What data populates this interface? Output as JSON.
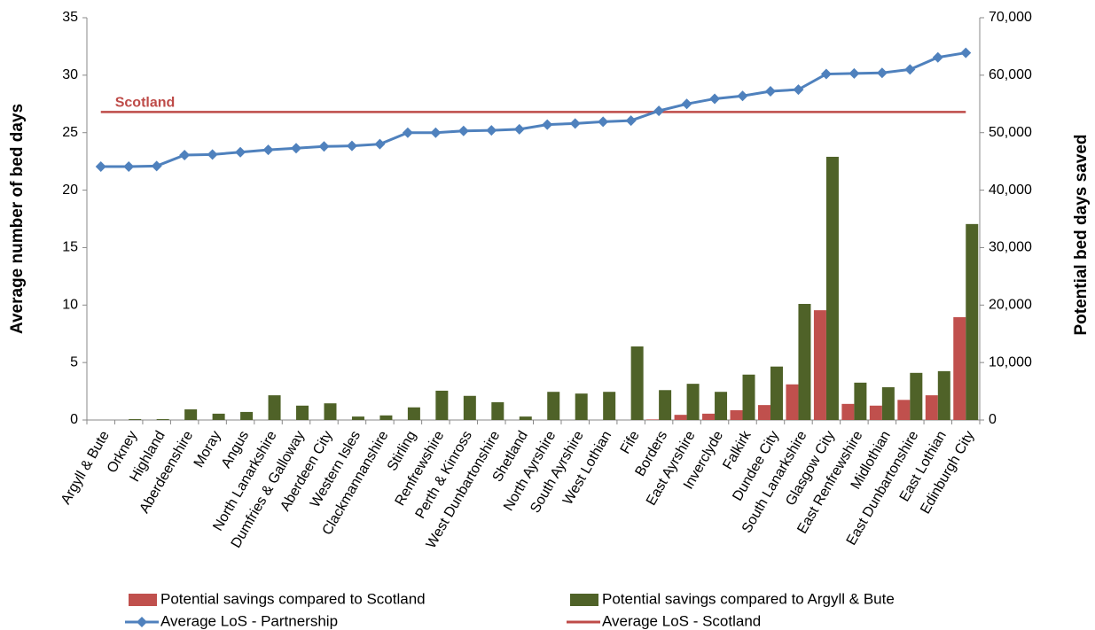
{
  "chart_data": {
    "type": "bar-line",
    "categories": [
      "Argyll & Bute",
      "Orkney",
      "Highland",
      "Aberdeenshire",
      "Moray",
      "Angus",
      "North Lanarkshire",
      "Dumfries & Galloway",
      "Aberdeen City",
      "Western Isles",
      "Clackmannanshire",
      "Stirling",
      "Renfrewshire",
      "Perth & Kinross",
      "West Dunbartonshire",
      "Shetland",
      "North Ayrshire",
      "South Ayrshire",
      "West Lothian",
      "Fife",
      "Borders",
      "East Ayrshire",
      "Inverclyde",
      "Falkirk",
      "Dundee City",
      "South Lanarkshire",
      "Glasgow City",
      "East Renfrewshire",
      "Midlothian",
      "East Dunbartonshire",
      "East Lothian",
      "Edinburgh City"
    ],
    "y_label": "Average number of bed days",
    "y2_label": "Potential bed days saved",
    "ylim": [
      0,
      35
    ],
    "yticks": [
      0,
      5,
      10,
      15,
      20,
      25,
      30,
      35
    ],
    "y2lim": [
      0,
      70000
    ],
    "y2ticks": [
      0,
      {
        "value": 10000,
        "label": "10,000"
      },
      {
        "value": 20000,
        "label": "20,000"
      },
      {
        "value": 30000,
        "label": "30,000"
      },
      {
        "value": 40000,
        "label": "40,000"
      },
      {
        "value": 50000,
        "label": "50,000"
      },
      {
        "value": 60000,
        "label": "60,000"
      },
      {
        "value": 70000,
        "label": "70,000"
      }
    ],
    "series": [
      {
        "name": "Potential savings compared to Scotland",
        "type": "bar",
        "axis": "y2",
        "color": "#c0504d",
        "values": [
          0,
          0,
          0,
          0,
          0,
          0,
          0,
          0,
          0,
          0,
          0,
          0,
          0,
          0,
          0,
          0,
          0,
          0,
          0,
          0,
          100,
          900,
          1100,
          1700,
          2600,
          6200,
          19100,
          2800,
          2500,
          3500,
          4300,
          17900
        ]
      },
      {
        "name": "Potential savings compared to Argyll & Bute",
        "type": "bar",
        "axis": "y2",
        "color": "#4f6228",
        "values": [
          0,
          150,
          150,
          1850,
          1100,
          1400,
          4300,
          2500,
          2900,
          600,
          800,
          2200,
          5100,
          4200,
          3100,
          600,
          4900,
          4600,
          4900,
          12800,
          5200,
          6300,
          4900,
          7900,
          9300,
          20200,
          45800,
          6500,
          5700,
          8200,
          8500,
          34100
        ]
      },
      {
        "name": "Average LoS - Partnership",
        "type": "line",
        "color": "#4f81bd",
        "values": [
          22.05,
          22.05,
          22.1,
          23.05,
          23.1,
          23.3,
          23.5,
          23.65,
          23.8,
          23.85,
          24.0,
          25.0,
          25.0,
          25.15,
          25.2,
          25.3,
          25.7,
          25.8,
          25.95,
          26.05,
          26.9,
          27.5,
          27.95,
          28.2,
          28.6,
          28.75,
          30.1,
          30.15,
          30.2,
          30.5,
          31.55,
          31.95
        ]
      }
    ],
    "reference_line": {
      "name": "Average LoS - Scotland",
      "label": "Scotland",
      "value": 26.8,
      "color": "#be4b48"
    }
  }
}
